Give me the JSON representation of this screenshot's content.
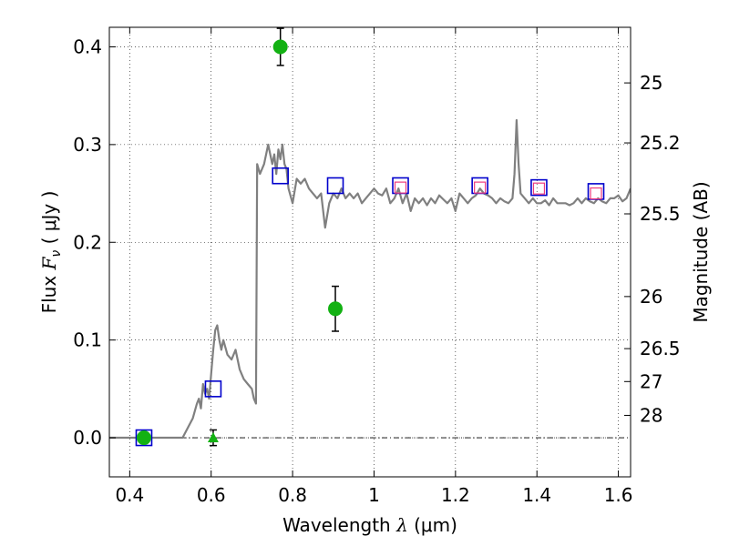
{
  "chart_data": {
    "type": "scatter",
    "xlabel": "Wavelength  λ (μm)",
    "ylabel": "Flux  F_ν  ( μJy )",
    "ylabel_parts": {
      "prefix": "Flux  ",
      "symbol": "F",
      "subscript": "ν",
      "suffix": "  ( μJy )"
    },
    "xlabel_parts": {
      "prefix": "Wavelength  ",
      "symbol": "λ",
      "suffix": " (μm)"
    },
    "y2label": "Magnitude (AB)",
    "xlim": [
      0.35,
      1.63
    ],
    "ylim": [
      -0.04,
      0.42
    ],
    "x_ticks": [
      0.4,
      0.6,
      0.8,
      1.0,
      1.2,
      1.4,
      1.6
    ],
    "x_tick_labels": [
      "0.4",
      "0.6",
      "0.8",
      "1",
      "1.2",
      "1.4",
      "1.6"
    ],
    "y_ticks": [
      0.0,
      0.1,
      0.2,
      0.3,
      0.4
    ],
    "y_tick_labels": [
      "0.0",
      "0.1",
      "0.2",
      "0.3",
      "0.4"
    ],
    "y2_ticks": [
      {
        "flux": 0.3631,
        "label": "25"
      },
      {
        "flux": 0.3017,
        "label": "25.2"
      },
      {
        "flux": 0.2291,
        "label": "25.5"
      },
      {
        "flux": 0.1445,
        "label": "26"
      },
      {
        "flux": 0.0912,
        "label": "26.5"
      },
      {
        "flux": 0.0575,
        "label": "27"
      },
      {
        "flux": 0.0229,
        "label": "28"
      }
    ],
    "grid": true,
    "zero_line": true,
    "series": [
      {
        "kind": "spectrum",
        "color": "#808080",
        "x": [
          0.35,
          0.44,
          0.5,
          0.53,
          0.555,
          0.565,
          0.57,
          0.575,
          0.58,
          0.585,
          0.59,
          0.595,
          0.6,
          0.605,
          0.61,
          0.615,
          0.62,
          0.625,
          0.63,
          0.64,
          0.65,
          0.66,
          0.67,
          0.68,
          0.69,
          0.7,
          0.705,
          0.71,
          0.713,
          0.72,
          0.73,
          0.74,
          0.75,
          0.755,
          0.76,
          0.765,
          0.77,
          0.775,
          0.78,
          0.785,
          0.79,
          0.8,
          0.81,
          0.82,
          0.83,
          0.84,
          0.85,
          0.86,
          0.87,
          0.88,
          0.89,
          0.9,
          0.91,
          0.92,
          0.93,
          0.94,
          0.95,
          0.96,
          0.97,
          0.98,
          0.99,
          1.0,
          1.01,
          1.02,
          1.03,
          1.04,
          1.05,
          1.06,
          1.07,
          1.08,
          1.09,
          1.1,
          1.11,
          1.12,
          1.13,
          1.14,
          1.15,
          1.16,
          1.17,
          1.18,
          1.19,
          1.2,
          1.21,
          1.22,
          1.23,
          1.24,
          1.25,
          1.26,
          1.27,
          1.28,
          1.29,
          1.3,
          1.31,
          1.32,
          1.33,
          1.34,
          1.345,
          1.35,
          1.355,
          1.36,
          1.37,
          1.38,
          1.39,
          1.4,
          1.41,
          1.42,
          1.43,
          1.44,
          1.45,
          1.46,
          1.47,
          1.48,
          1.49,
          1.5,
          1.51,
          1.52,
          1.53,
          1.54,
          1.55,
          1.56,
          1.57,
          1.58,
          1.59,
          1.6,
          1.61,
          1.62,
          1.63
        ],
        "y": [
          0.0,
          0.0,
          0.0,
          0.0,
          0.02,
          0.035,
          0.04,
          0.03,
          0.055,
          0.045,
          0.05,
          0.04,
          0.065,
          0.09,
          0.11,
          0.115,
          0.1,
          0.09,
          0.1,
          0.085,
          0.08,
          0.09,
          0.07,
          0.06,
          0.055,
          0.05,
          0.04,
          0.035,
          0.28,
          0.27,
          0.28,
          0.3,
          0.28,
          0.29,
          0.27,
          0.295,
          0.285,
          0.3,
          0.28,
          0.275,
          0.255,
          0.24,
          0.265,
          0.26,
          0.265,
          0.255,
          0.25,
          0.245,
          0.25,
          0.215,
          0.24,
          0.25,
          0.245,
          0.255,
          0.245,
          0.25,
          0.245,
          0.25,
          0.24,
          0.245,
          0.25,
          0.255,
          0.25,
          0.248,
          0.255,
          0.24,
          0.245,
          0.255,
          0.24,
          0.25,
          0.232,
          0.245,
          0.24,
          0.245,
          0.238,
          0.245,
          0.24,
          0.248,
          0.244,
          0.24,
          0.245,
          0.232,
          0.25,
          0.245,
          0.24,
          0.245,
          0.248,
          0.255,
          0.25,
          0.248,
          0.245,
          0.24,
          0.245,
          0.242,
          0.24,
          0.245,
          0.27,
          0.325,
          0.28,
          0.25,
          0.245,
          0.24,
          0.245,
          0.24,
          0.24,
          0.243,
          0.238,
          0.245,
          0.24,
          0.24,
          0.24,
          0.238,
          0.24,
          0.245,
          0.24,
          0.245,
          0.242,
          0.24,
          0.245,
          0.242,
          0.24,
          0.245,
          0.245,
          0.248,
          0.242,
          0.245,
          0.255
        ]
      },
      {
        "kind": "square",
        "color": "#0000cc",
        "x": [
          0.435,
          0.605,
          0.77,
          0.905,
          1.065,
          1.26,
          1.405,
          1.545
        ],
        "y": [
          0.0,
          0.05,
          0.268,
          0.258,
          0.258,
          0.258,
          0.256,
          0.252
        ]
      },
      {
        "kind": "square-small",
        "color": "#ee3b7e",
        "x": [
          1.065,
          1.26,
          1.405,
          1.545
        ],
        "y": [
          0.256,
          0.256,
          0.255,
          0.25
        ]
      },
      {
        "kind": "circle",
        "color": "#13b113",
        "x": [
          0.435,
          0.77,
          0.905
        ],
        "y": [
          0.0,
          0.4,
          0.132
        ],
        "yerr": [
          0.0,
          0.019,
          0.023
        ]
      },
      {
        "kind": "triangle",
        "color": "#13b113",
        "x": [
          0.605
        ],
        "y": [
          0.0
        ],
        "yerr": [
          0.008
        ]
      }
    ]
  }
}
